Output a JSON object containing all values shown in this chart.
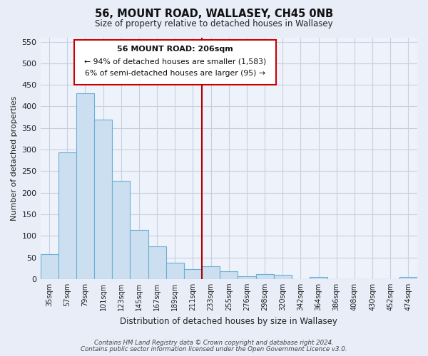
{
  "title": "56, MOUNT ROAD, WALLASEY, CH45 0NB",
  "subtitle": "Size of property relative to detached houses in Wallasey",
  "xlabel": "Distribution of detached houses by size in Wallasey",
  "ylabel": "Number of detached properties",
  "bar_labels": [
    "35sqm",
    "57sqm",
    "79sqm",
    "101sqm",
    "123sqm",
    "145sqm",
    "167sqm",
    "189sqm",
    "211sqm",
    "233sqm",
    "255sqm",
    "276sqm",
    "298sqm",
    "320sqm",
    "342sqm",
    "364sqm",
    "386sqm",
    "408sqm",
    "430sqm",
    "452sqm",
    "474sqm"
  ],
  "bar_values": [
    57,
    293,
    430,
    369,
    228,
    114,
    76,
    38,
    22,
    29,
    18,
    7,
    12,
    9,
    0,
    5,
    0,
    0,
    0,
    0,
    4
  ],
  "bar_color": "#ccdff0",
  "bar_edge_color": "#6aaed6",
  "vline_color": "#aa0000",
  "vline_x": 8.5,
  "annotation_text_line1": "56 MOUNT ROAD: 206sqm",
  "annotation_text_line2": "← 94% of detached houses are smaller (1,583)",
  "annotation_text_line3": "6% of semi-detached houses are larger (95) →",
  "ylim": [
    0,
    560
  ],
  "yticks": [
    0,
    50,
    100,
    150,
    200,
    250,
    300,
    350,
    400,
    450,
    500,
    550
  ],
  "footer1": "Contains HM Land Registry data © Crown copyright and database right 2024.",
  "footer2": "Contains public sector information licensed under the Open Government Licence v3.0.",
  "bg_color": "#e8edf8",
  "plot_bg_color": "#eef2fa",
  "grid_color": "#c8d0e0"
}
